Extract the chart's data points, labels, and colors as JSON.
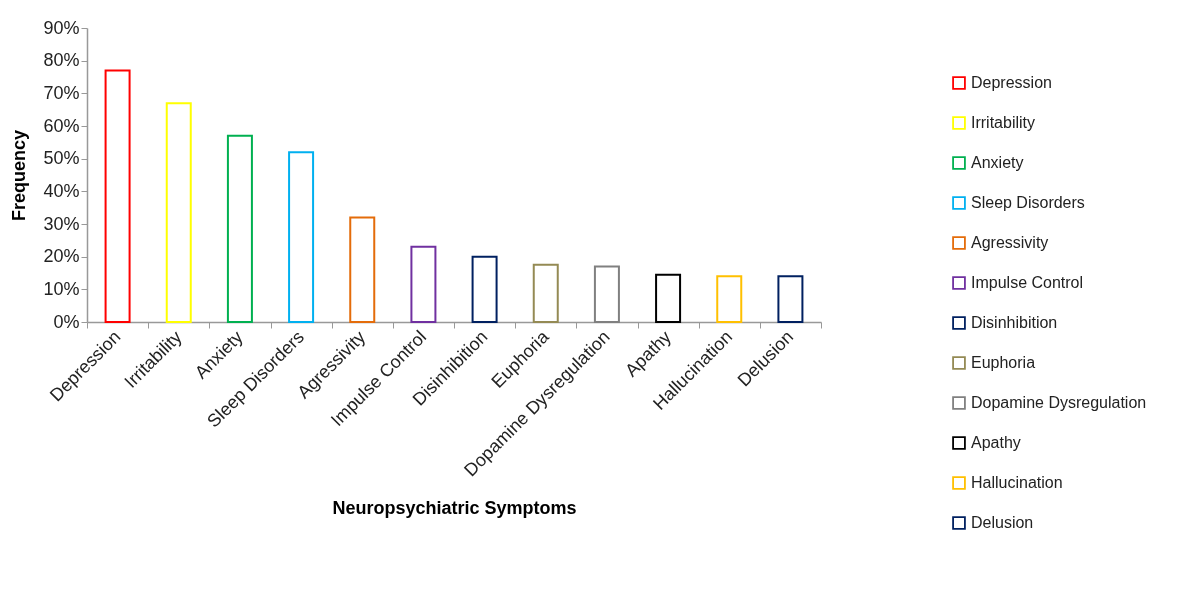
{
  "chart_data": {
    "type": "bar",
    "xlabel": "Neuropsychiatric Symptoms",
    "ylabel": "Frequency",
    "categories": [
      "Depression",
      "Irritability",
      "Anxiety",
      "Sleep Disorders",
      "Agressivity",
      "Impulse Control",
      "Disinhibition",
      "Euphoria",
      "Dopamine Dysregulation",
      "Apathy",
      "Hallucination",
      "Delusion"
    ],
    "series": [
      {
        "name": "Depression",
        "color": "#ff0000",
        "values": [
          77,
          null,
          null,
          null,
          null,
          null,
          null,
          null,
          null,
          null,
          null,
          null
        ]
      },
      {
        "name": "Irritability",
        "color": "#ffff00",
        "values": [
          null,
          67,
          null,
          null,
          null,
          null,
          null,
          null,
          null,
          null,
          null,
          null
        ]
      },
      {
        "name": "Anxiety",
        "color": "#00b050",
        "values": [
          null,
          null,
          57,
          null,
          null,
          null,
          null,
          null,
          null,
          null,
          null,
          null
        ]
      },
      {
        "name": "Sleep Disorders",
        "color": "#00b0f0",
        "values": [
          null,
          null,
          null,
          52,
          null,
          null,
          null,
          null,
          null,
          null,
          null,
          null
        ]
      },
      {
        "name": "Agressivity",
        "color": "#e46c0a",
        "values": [
          null,
          null,
          null,
          null,
          32,
          null,
          null,
          null,
          null,
          null,
          null,
          null
        ]
      },
      {
        "name": "Impulse Control",
        "color": "#7030a0",
        "values": [
          null,
          null,
          null,
          null,
          null,
          23,
          null,
          null,
          null,
          null,
          null,
          null
        ]
      },
      {
        "name": "Disinhibition",
        "color": "#002060",
        "values": [
          null,
          null,
          null,
          null,
          null,
          null,
          20,
          null,
          null,
          null,
          null,
          null
        ]
      },
      {
        "name": "Euphoria",
        "color": "#948a54",
        "values": [
          null,
          null,
          null,
          null,
          null,
          null,
          null,
          17.5,
          null,
          null,
          null,
          null
        ]
      },
      {
        "name": "Dopamine Dysregulation",
        "color": "#808080",
        "values": [
          null,
          null,
          null,
          null,
          null,
          null,
          null,
          null,
          17,
          null,
          null,
          null
        ]
      },
      {
        "name": "Apathy",
        "color": "#000000",
        "values": [
          null,
          null,
          null,
          null,
          null,
          null,
          null,
          null,
          null,
          14.5,
          null,
          null
        ]
      },
      {
        "name": "Hallucination",
        "color": "#ffc000",
        "values": [
          null,
          null,
          null,
          null,
          null,
          null,
          null,
          null,
          null,
          null,
          14,
          null
        ]
      },
      {
        "name": "Delusion",
        "color": "#002060",
        "values": [
          null,
          null,
          null,
          null,
          null,
          null,
          null,
          null,
          null,
          null,
          null,
          14
        ]
      }
    ],
    "grid": false,
    "ylim": [
      0,
      90
    ],
    "yticks": [
      {
        "value": 0,
        "label": "0%"
      },
      {
        "value": 10,
        "label": "10%"
      },
      {
        "value": 20,
        "label": "20%"
      },
      {
        "value": 30,
        "label": "30%"
      },
      {
        "value": 40,
        "label": "40%"
      },
      {
        "value": 50,
        "label": "50%"
      },
      {
        "value": 60,
        "label": "60%"
      },
      {
        "value": 70,
        "label": "70%"
      },
      {
        "value": 80,
        "label": "80%"
      },
      {
        "value": 90,
        "label": "90%"
      }
    ],
    "legend": "right"
  }
}
